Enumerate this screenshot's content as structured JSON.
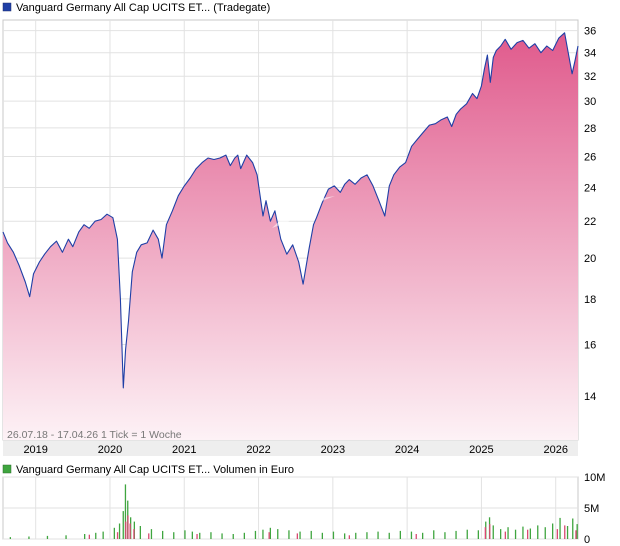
{
  "chart_data": [
    {
      "type": "area",
      "title": "Vanguard Germany All Cap UCITS ET... (Tradegate)",
      "legend_color": "#1f3fa6",
      "line_color": "#1f3fa6",
      "fill_top_color": "#e05a8c",
      "fill_bottom_color": "#fdf2f6",
      "ylim": [
        12.5,
        37
      ],
      "y_scale": "log",
      "yticks": [
        14,
        16,
        18,
        20,
        22,
        24,
        26,
        28,
        30,
        32,
        34,
        36
      ],
      "ytick_labels": [
        "14",
        "16",
        "18",
        "20",
        "22",
        "24",
        "26",
        "28",
        "30",
        "32",
        "34",
        "36"
      ],
      "xlim": [
        2018.56,
        2026.3
      ],
      "xticks": [
        2019,
        2020,
        2021,
        2022,
        2023,
        2024,
        2025,
        2026
      ],
      "xtick_labels": [
        "2019",
        "2020",
        "2021",
        "2022",
        "2023",
        "2024",
        "2025",
        "2026"
      ],
      "grid": true,
      "info_text": "26.07.18 - 17.04.26   1 Tick = 1 Woche",
      "x": [
        2018.56,
        2018.62,
        2018.7,
        2018.78,
        2018.86,
        2018.92,
        2018.97,
        2019.05,
        2019.12,
        2019.2,
        2019.28,
        2019.36,
        2019.44,
        2019.5,
        2019.58,
        2019.65,
        2019.72,
        2019.8,
        2019.88,
        2019.96,
        2020.04,
        2020.1,
        2020.14,
        2020.18,
        2020.21,
        2020.25,
        2020.3,
        2020.36,
        2020.42,
        2020.5,
        2020.58,
        2020.65,
        2020.7,
        2020.76,
        2020.84,
        2020.92,
        2021.0,
        2021.08,
        2021.16,
        2021.24,
        2021.32,
        2021.4,
        2021.48,
        2021.56,
        2021.62,
        2021.68,
        2021.72,
        2021.76,
        2021.84,
        2021.92,
        2021.98,
        2022.06,
        2022.1,
        2022.16,
        2022.22,
        2022.3,
        2022.38,
        2022.46,
        2022.54,
        2022.6,
        2022.68,
        2022.74,
        2022.78,
        2022.86,
        2022.94,
        2023.02,
        2023.1,
        2023.16,
        2023.22,
        2023.3,
        2023.38,
        2023.46,
        2023.54,
        2023.62,
        2023.7,
        2023.76,
        2023.82,
        2023.9,
        2023.98,
        2024.06,
        2024.14,
        2024.22,
        2024.3,
        2024.38,
        2024.46,
        2024.54,
        2024.6,
        2024.66,
        2024.72,
        2024.8,
        2024.88,
        2024.94,
        2025.0,
        2025.04,
        2025.08,
        2025.12,
        2025.16,
        2025.2,
        2025.26,
        2025.32,
        2025.4,
        2025.48,
        2025.56,
        2025.64,
        2025.72,
        2025.8,
        2025.88,
        2025.96,
        2026.04,
        2026.12,
        2026.16,
        2026.22,
        2026.26,
        2026.3
      ],
      "values": [
        21.4,
        20.8,
        20.3,
        19.6,
        18.8,
        18.1,
        19.2,
        19.8,
        20.2,
        20.6,
        20.9,
        20.3,
        21.0,
        20.6,
        21.4,
        21.8,
        21.6,
        22.0,
        22.1,
        22.4,
        22.2,
        21.0,
        18.0,
        14.3,
        15.8,
        17.0,
        19.3,
        20.3,
        20.7,
        20.8,
        21.5,
        21.0,
        20.0,
        21.8,
        22.6,
        23.5,
        24.1,
        24.6,
        25.2,
        25.6,
        25.9,
        25.8,
        25.9,
        26.1,
        25.4,
        25.9,
        26.1,
        25.2,
        26.1,
        25.6,
        24.8,
        22.3,
        23.2,
        22.0,
        22.6,
        21.0,
        20.2,
        20.7,
        19.8,
        18.7,
        20.5,
        21.8,
        22.2,
        23.1,
        23.9,
        24.1,
        23.7,
        24.2,
        24.5,
        24.2,
        24.6,
        24.8,
        24.1,
        23.2,
        22.3,
        24.1,
        24.8,
        25.3,
        25.6,
        26.7,
        27.2,
        27.7,
        28.2,
        28.3,
        28.6,
        28.8,
        28.1,
        29.0,
        29.4,
        29.8,
        30.6,
        30.2,
        31.2,
        32.6,
        33.8,
        31.5,
        33.6,
        34.2,
        34.6,
        35.2,
        34.3,
        34.9,
        35.1,
        34.4,
        34.8,
        34.0,
        34.6,
        34.2,
        35.3,
        35.8,
        34.3,
        32.2,
        33.3,
        34.6
      ]
    },
    {
      "type": "bar",
      "title": "Vanguard Germany All Cap UCITS ET... Volumen in Euro",
      "legend_color": "#3fa53f",
      "ylim": [
        0,
        10
      ],
      "yticks": [
        0,
        5,
        10
      ],
      "ytick_labels": [
        "0",
        "5M",
        "10M"
      ],
      "xlim": [
        2018.56,
        2026.3
      ],
      "xticks": [
        2019,
        2020,
        2021,
        2022,
        2023,
        2024,
        2025,
        2026
      ],
      "grid": true,
      "series": [
        {
          "color": "#3fa53f",
          "x": [
            2018.65,
            2018.9,
            2019.15,
            2019.4,
            2019.65,
            2019.8,
            2019.9,
            2020.05,
            2020.12,
            2020.17,
            2020.2,
            2020.23,
            2020.27,
            2020.32,
            2020.4,
            2020.55,
            2020.7,
            2020.85,
            2021.0,
            2021.1,
            2021.2,
            2021.35,
            2021.5,
            2021.65,
            2021.8,
            2021.95,
            2022.05,
            2022.15,
            2022.25,
            2022.4,
            2022.55,
            2022.7,
            2022.85,
            2023.0,
            2023.15,
            2023.3,
            2023.45,
            2023.6,
            2023.75,
            2023.9,
            2024.05,
            2024.2,
            2024.35,
            2024.5,
            2024.65,
            2024.8,
            2024.95,
            2025.05,
            2025.1,
            2025.15,
            2025.25,
            2025.35,
            2025.45,
            2025.55,
            2025.65,
            2025.75,
            2025.85,
            2025.95,
            2026.05,
            2026.15,
            2026.22,
            2026.28
          ],
          "values": [
            0.3,
            0.4,
            0.5,
            0.6,
            0.8,
            1.0,
            1.2,
            1.8,
            2.5,
            4.5,
            8.8,
            6.2,
            3.5,
            2.8,
            2.1,
            1.6,
            1.3,
            1.1,
            1.4,
            1.2,
            1.0,
            1.1,
            0.9,
            0.8,
            1.0,
            1.3,
            1.5,
            1.8,
            1.6,
            1.4,
            1.2,
            1.3,
            1.0,
            1.2,
            0.9,
            1.0,
            1.1,
            1.2,
            1.0,
            1.3,
            1.2,
            1.0,
            1.4,
            1.1,
            1.3,
            1.5,
            1.4,
            2.8,
            3.5,
            2.2,
            1.6,
            1.9,
            1.5,
            2.0,
            1.7,
            2.2,
            1.9,
            2.5,
            3.4,
            2.1,
            3.3,
            2.4
          ]
        },
        {
          "color": "#d94a72",
          "x": [
            2019.7,
            2020.08,
            2020.19,
            2020.22,
            2020.25,
            2020.3,
            2020.5,
            2021.15,
            2022.12,
            2022.5,
            2023.2,
            2024.1,
            2025.03,
            2025.09,
            2025.3,
            2025.6,
            2026.0,
            2026.1,
            2026.25
          ],
          "values": [
            0.7,
            1.1,
            2.8,
            3.8,
            2.5,
            1.6,
            0.9,
            0.8,
            1.1,
            0.9,
            0.6,
            0.8,
            1.9,
            2.4,
            1.2,
            1.5,
            1.6,
            2.2,
            1.4
          ]
        }
      ]
    }
  ]
}
